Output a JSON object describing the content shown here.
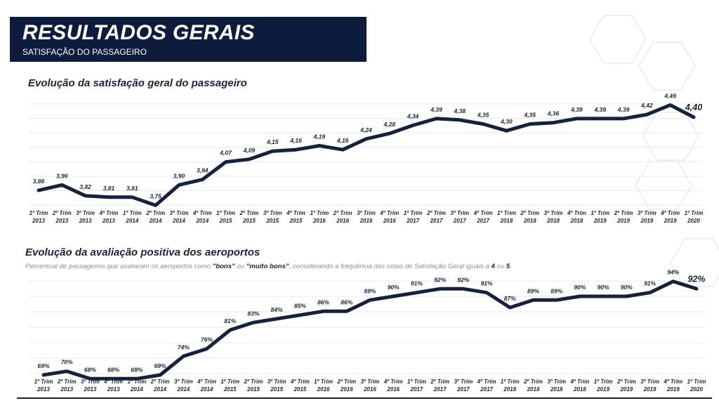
{
  "header": {
    "title": "RESULTADOS GERAIS",
    "subtitle": "SATISFAÇÃO DO PASSAGEIRO"
  },
  "colors": {
    "banner": "#0d1c3d",
    "line": "#16213d",
    "grid": "#e6e9ee"
  },
  "chart_data": [
    {
      "type": "line",
      "title": "Evolução da satisfação geral do passageiro",
      "x": [
        "1º Trim 2013",
        "2º Trim 2013",
        "3º Trim 2013",
        "4º Trim 2013",
        "1º Trim 2014",
        "2º Trim 2014",
        "3º Trim 2014",
        "4º Trim 2014",
        "1º Trim 2015",
        "2º Trim 2015",
        "3º Trim 2015",
        "4º Trim 2015",
        "1º Trim 2016",
        "2º Trim 2016",
        "3º Trim 2016",
        "4º Trim 2016",
        "1º Trim 2017",
        "2º Trim 2017",
        "3º Trim 2017",
        "4º Trim 2017",
        "1º Trim 2018",
        "2º Trim 2018",
        "3º Trim 2018",
        "4º Trim 2018",
        "1º Trim 2019",
        "2º Trim 2019",
        "3º Trim 2019",
        "4º Trim 2019",
        "1º Trim 2020"
      ],
      "values": [
        3.86,
        3.9,
        3.82,
        3.81,
        3.81,
        3.75,
        3.9,
        3.94,
        4.07,
        4.09,
        4.15,
        4.16,
        4.19,
        4.16,
        4.24,
        4.28,
        4.34,
        4.39,
        4.38,
        4.35,
        4.3,
        4.35,
        4.36,
        4.39,
        4.39,
        4.39,
        4.42,
        4.49,
        4.4
      ],
      "labels": [
        "3,86",
        "3,90",
        "3,82",
        "3,81",
        "3,81",
        "3,75",
        "3,90",
        "3,94",
        "4,07",
        "4,09",
        "4,15",
        "4,16",
        "4,19",
        "4,16",
        "4,24",
        "4,28",
        "4,34",
        "4,39",
        "4,38",
        "4,35",
        "4,30",
        "4,35",
        "4,36",
        "4,39",
        "4,39",
        "4,39",
        "4,42",
        "4,49",
        "4,40"
      ],
      "xlabel": "",
      "ylabel": "",
      "ylim": [
        3.7,
        4.55
      ],
      "grid": true,
      "legend": "none"
    },
    {
      "type": "line",
      "title": "Evolução da avaliação positiva dos aeroportos",
      "subtitle_parts": [
        "Percentual de passageiros que avaliaram os aeroportos como ",
        "\"bons\"",
        " ou ",
        "\"muito bons\"",
        ", considerando a frequência das notas de Satisfação Geral iguais a ",
        "4",
        " ou ",
        "5",
        "."
      ],
      "x": [
        "1º Trim 2013",
        "2º Trim 2013",
        "3º Trim 2013",
        "4º Trim 2013",
        "1º Trim 2014",
        "2º Trim 2014",
        "3º Trim 2014",
        "4º Trim 2014",
        "1º Trim 2015",
        "2º Trim 2015",
        "3º Trim 2015",
        "4º Trim 2015",
        "1º Trim 2016",
        "2º Trim 2016",
        "3º Trim 2016",
        "4º Trim 2016",
        "1º Trim 2017",
        "2º Trim 2017",
        "3º Trim 2017",
        "4º Trim 2017",
        "1º Trim 2018",
        "2º Trim 2018",
        "3º Trim 2018",
        "4º Trim 2018",
        "1º Trim 2019",
        "2º Trim 2019",
        "3º Trim 2019",
        "4º Trim 2019",
        "1º Trim 2020"
      ],
      "values": [
        69,
        70,
        68,
        68,
        68,
        69,
        74,
        76,
        81,
        83,
        84,
        85,
        86,
        86,
        89,
        90,
        91,
        92,
        92,
        91,
        87,
        89,
        89,
        90,
        90,
        90,
        91,
        94,
        92
      ],
      "labels": [
        "69%",
        "70%",
        "68%",
        "68%",
        "68%",
        "69%",
        "74%",
        "76%",
        "81%",
        "83%",
        "84%",
        "85%",
        "86%",
        "86%",
        "89%",
        "90%",
        "91%",
        "92%",
        "92%",
        "91%",
        "87%",
        "89%",
        "89%",
        "90%",
        "90%",
        "90%",
        "91%",
        "94%",
        "92%"
      ],
      "xlabel": "",
      "ylabel": "",
      "ylim": [
        66,
        96
      ],
      "grid": true,
      "legend": "none"
    }
  ]
}
